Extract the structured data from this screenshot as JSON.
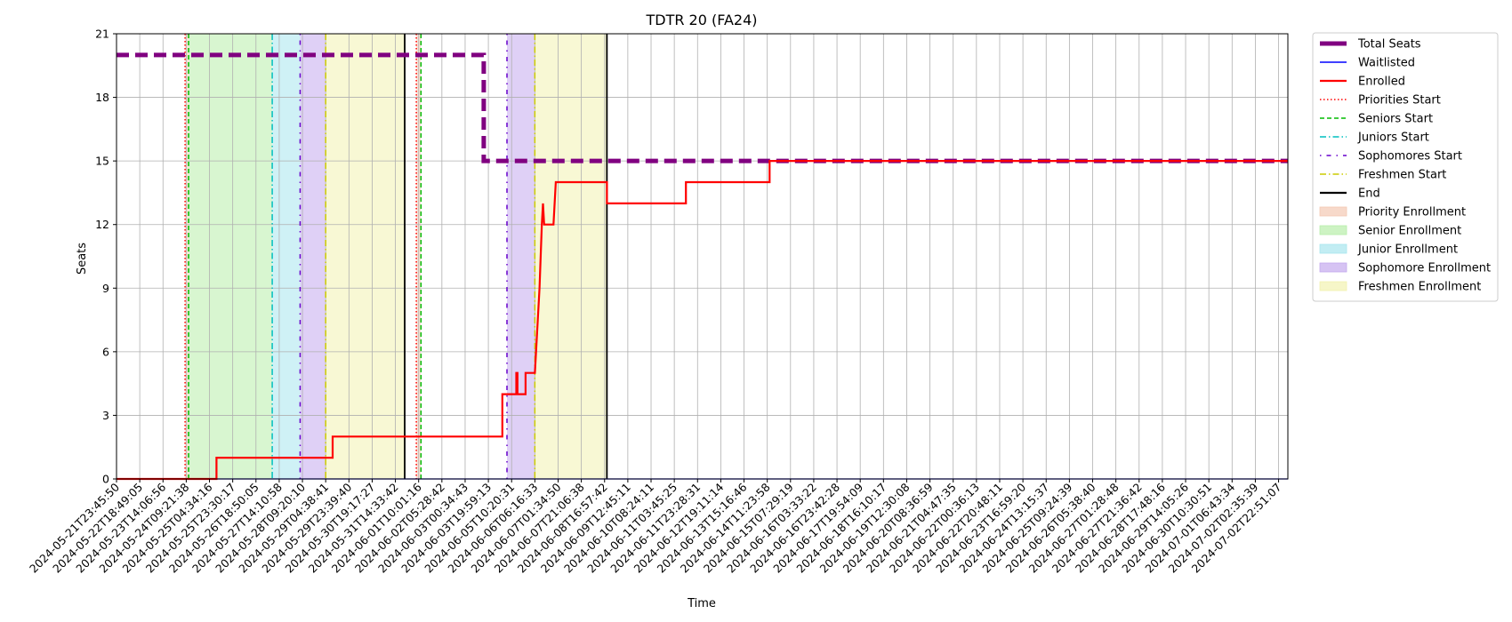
{
  "chart_data": {
    "type": "line",
    "title": "TDTR 20 (FA24)",
    "xlabel": "Time",
    "ylabel": "Seats",
    "ylim": [
      0,
      21
    ],
    "yticks": [
      0,
      3,
      6,
      9,
      12,
      15,
      18,
      21
    ],
    "x_tick_labels": [
      "2024-05-21T23:45:50",
      "2024-05-22T18:49:05",
      "2024-05-23T14:06:56",
      "2024-05-24T09:21:38",
      "2024-05-25T04:34:16",
      "2024-05-25T23:30:17",
      "2024-05-26T18:50:05",
      "2024-05-27T14:10:58",
      "2024-05-28T09:20:10",
      "2024-05-29T04:38:41",
      "2024-05-29T23:39:40",
      "2024-05-30T19:17:27",
      "2024-05-31T14:33:42",
      "2024-06-01T10:01:16",
      "2024-06-02T05:28:42",
      "2024-06-03T00:34:43",
      "2024-06-03T19:59:13",
      "2024-06-05T10:20:31",
      "2024-06-06T06:16:33",
      "2024-06-07T01:34:50",
      "2024-06-07T21:06:38",
      "2024-06-08T16:57:42",
      "2024-06-09T12:45:11",
      "2024-06-10T08:24:11",
      "2024-06-11T03:45:25",
      "2024-06-11T23:28:31",
      "2024-06-12T19:11:14",
      "2024-06-13T15:16:46",
      "2024-06-14T11:23:58",
      "2024-06-15T07:29:19",
      "2024-06-16T03:33:22",
      "2024-06-16T23:42:28",
      "2024-06-17T19:54:09",
      "2024-06-18T16:10:17",
      "2024-06-19T12:30:08",
      "2024-06-20T08:36:59",
      "2024-06-21T04:47:35",
      "2024-06-22T00:36:13",
      "2024-06-22T20:48:11",
      "2024-06-23T16:59:20",
      "2024-06-24T13:15:37",
      "2024-06-25T09:24:39",
      "2024-06-26T05:38:40",
      "2024-06-27T01:28:48",
      "2024-06-27T21:36:42",
      "2024-06-28T17:48:16",
      "2024-06-29T14:05:26",
      "2024-06-30T10:30:51",
      "2024-07-01T06:43:34",
      "2024-07-02T02:35:39",
      "2024-07-02T22:51:07"
    ],
    "x_range": [
      0,
      50.4
    ],
    "grid": true,
    "legend_position": "outside-right",
    "series": [
      {
        "name": "Total Seats",
        "color": "#800080",
        "style": "dashed-thick",
        "points": [
          [
            0,
            20
          ],
          [
            15.8,
            20
          ],
          [
            15.8,
            15
          ],
          [
            50.4,
            15
          ]
        ]
      },
      {
        "name": "Waitlisted",
        "color": "#0000ff",
        "style": "solid-thin",
        "points": [
          [
            0,
            0
          ],
          [
            50.4,
            0
          ]
        ]
      },
      {
        "name": "Enrolled",
        "color": "#ff0000",
        "style": "solid",
        "points": [
          [
            0,
            0
          ],
          [
            4.3,
            0
          ],
          [
            4.3,
            1
          ],
          [
            9.3,
            1
          ],
          [
            9.3,
            2
          ],
          [
            16.6,
            2
          ],
          [
            16.6,
            4
          ],
          [
            17.2,
            4
          ],
          [
            17.2,
            5
          ],
          [
            17.25,
            5
          ],
          [
            17.25,
            4
          ],
          [
            17.6,
            4
          ],
          [
            17.6,
            5
          ],
          [
            18.0,
            5
          ],
          [
            18.2,
            9
          ],
          [
            18.3,
            12
          ],
          [
            18.35,
            13
          ],
          [
            18.4,
            12
          ],
          [
            18.8,
            12
          ],
          [
            18.9,
            14
          ],
          [
            21.1,
            14
          ],
          [
            21.1,
            13
          ],
          [
            24.5,
            13
          ],
          [
            24.5,
            14
          ],
          [
            28.1,
            14
          ],
          [
            28.1,
            15
          ],
          [
            50.4,
            15
          ]
        ]
      }
    ],
    "markers": [
      {
        "name": "Priorities Start",
        "color": "#ff0000",
        "style": "dotted",
        "x": [
          2.95,
          12.9
        ]
      },
      {
        "name": "Seniors Start",
        "color": "#00bb00",
        "style": "dashed",
        "x": [
          3.1,
          13.1
        ]
      },
      {
        "name": "Juniors Start",
        "color": "#00bfbf",
        "style": "dashdot",
        "x": [
          6.7
        ]
      },
      {
        "name": "Sophomores Start",
        "color": "#6600cc",
        "style": "dashdot-sparse",
        "x": [
          7.9,
          16.8
        ]
      },
      {
        "name": "Freshmen Start",
        "color": "#cccc00",
        "style": "dashdot",
        "x": [
          9.0,
          18.0
        ]
      },
      {
        "name": "End",
        "color": "#000000",
        "style": "solid",
        "x": [
          12.4,
          21.1
        ]
      }
    ],
    "regions": [
      {
        "name": "Priority Enrollment",
        "color": "#f4c9b3",
        "ranges": [
          [
            2.95,
            3.1
          ],
          [
            12.9,
            13.1
          ]
        ]
      },
      {
        "name": "Senior Enrollment",
        "color": "#b8eeaa",
        "ranges": [
          [
            3.1,
            6.7
          ]
        ]
      },
      {
        "name": "Junior Enrollment",
        "color": "#a8e6ee",
        "ranges": [
          [
            6.7,
            7.9
          ]
        ]
      },
      {
        "name": "Sophomore Enrollment",
        "color": "#c4aaee",
        "ranges": [
          [
            7.9,
            9.0
          ],
          [
            16.8,
            18.0
          ]
        ]
      },
      {
        "name": "Freshmen Enrollment",
        "color": "#f2f2b0",
        "ranges": [
          [
            9.0,
            12.4
          ],
          [
            18.0,
            21.1
          ]
        ]
      }
    ]
  }
}
